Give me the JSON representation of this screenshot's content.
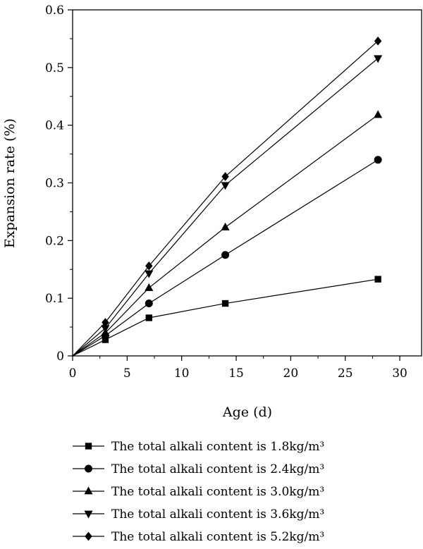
{
  "chart_data": {
    "type": "line",
    "xlabel": "Age (d)",
    "ylabel": "Expansion rate (%)",
    "xlim": [
      0,
      32
    ],
    "ylim": [
      0,
      0.6
    ],
    "xticks": [
      "0",
      "5",
      "10",
      "15",
      "20",
      "25",
      "30"
    ],
    "yticks": [
      "0",
      "0.1",
      "0.2",
      "0.3",
      "0.4",
      "0.5",
      "0.6"
    ],
    "grid": false,
    "legend_position": "bottom",
    "series": [
      {
        "name": "The total alkali content is 1.8kg/m³",
        "marker": "square",
        "x": [
          0,
          3,
          7,
          14,
          28
        ],
        "y": [
          0,
          0.028,
          0.066,
          0.091,
          0.133
        ]
      },
      {
        "name": "The total alkali content is 2.4kg/m³",
        "marker": "circle",
        "x": [
          0,
          3,
          7,
          14,
          28
        ],
        "y": [
          0,
          0.035,
          0.091,
          0.175,
          0.34
        ]
      },
      {
        "name": "The total alkali content is 3.0kg/m³",
        "marker": "triangle-up",
        "x": [
          0,
          3,
          7,
          14,
          28
        ],
        "y": [
          0,
          0.04,
          0.118,
          0.223,
          0.418
        ]
      },
      {
        "name": "The total alkali content is 3.6kg/m³",
        "marker": "triangle-down",
        "x": [
          0,
          3,
          7,
          14,
          28
        ],
        "y": [
          0,
          0.048,
          0.143,
          0.296,
          0.516
        ]
      },
      {
        "name": "The total alkali content is 5.2kg/m³",
        "marker": "diamond",
        "x": [
          0,
          3,
          7,
          14,
          28
        ],
        "y": [
          0,
          0.058,
          0.156,
          0.311,
          0.546
        ]
      }
    ]
  }
}
